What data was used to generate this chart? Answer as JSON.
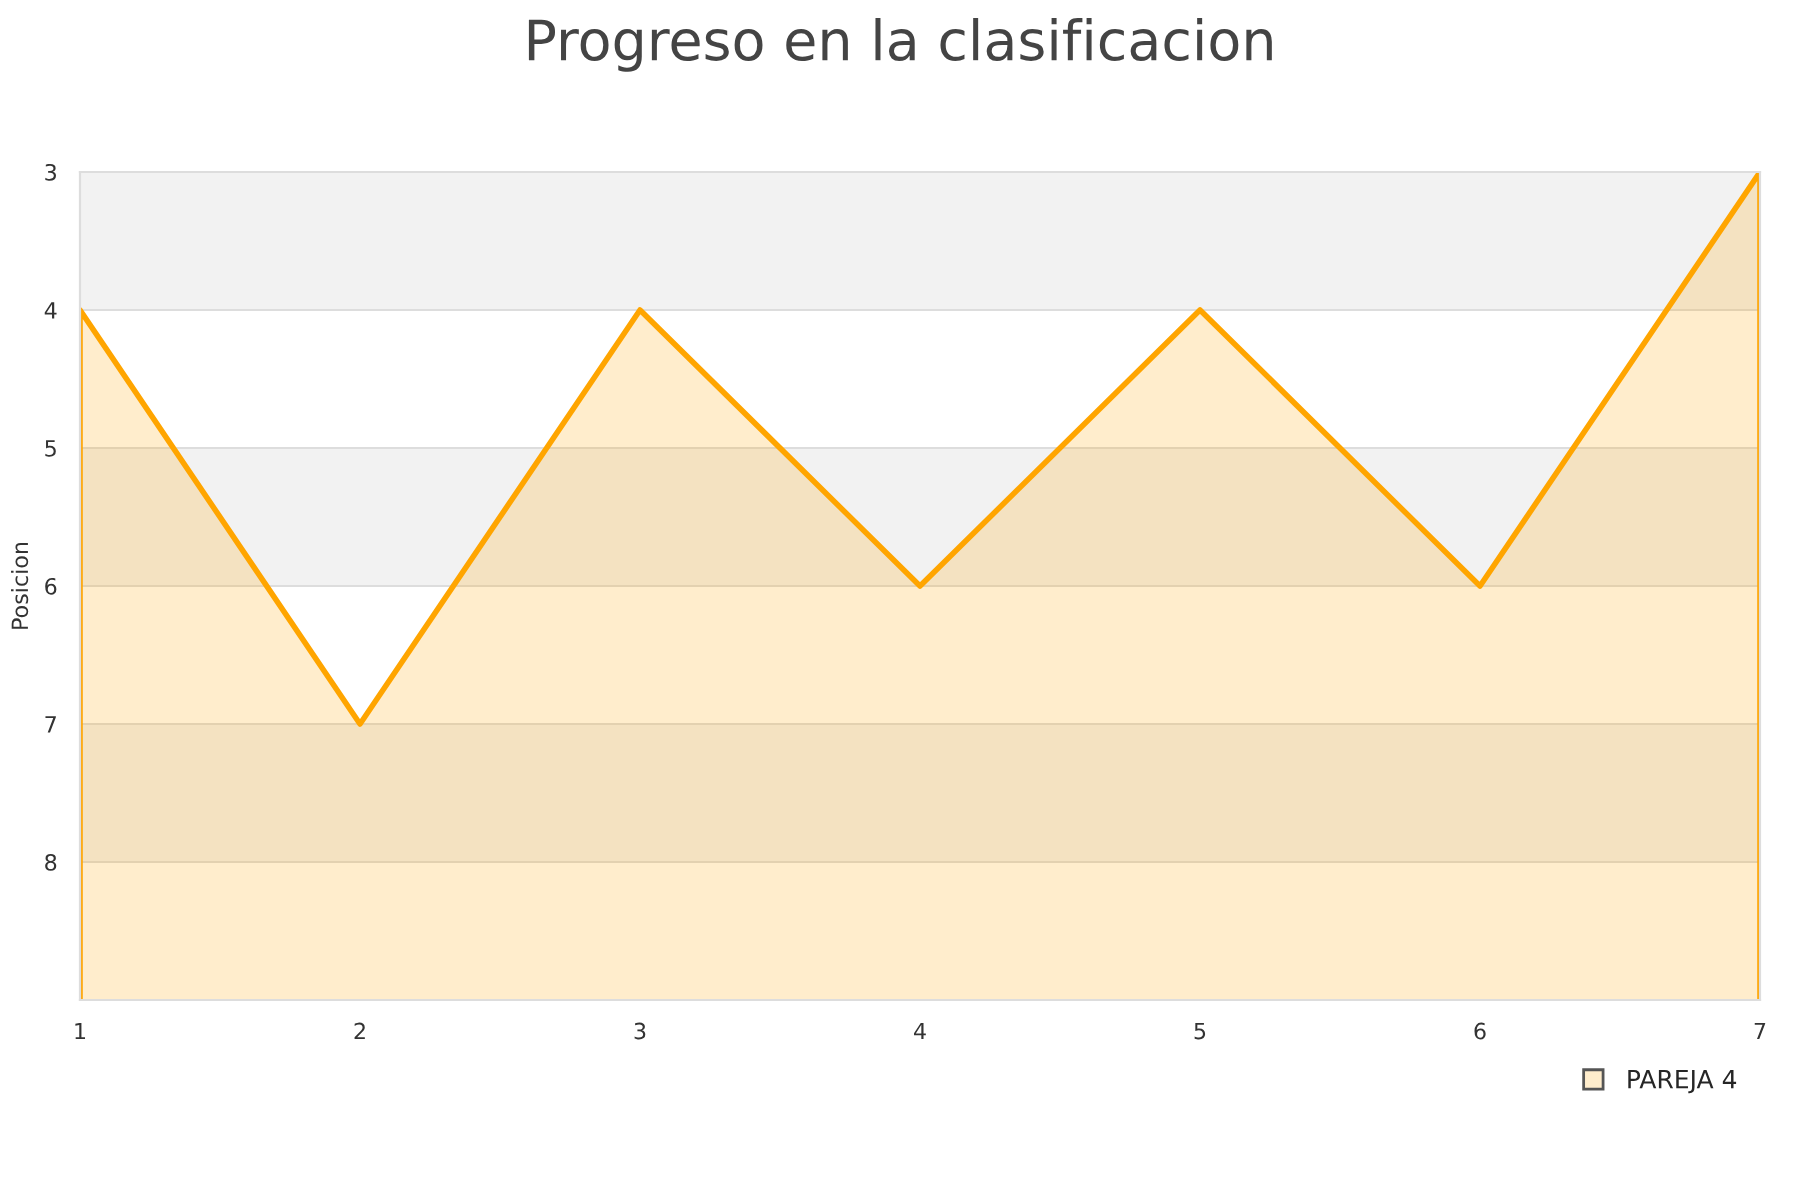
{
  "chart_data": {
    "type": "area",
    "title": "Progreso en la clasificacion",
    "ylabel": "Posicion",
    "x": [
      1,
      2,
      3,
      4,
      5,
      6,
      7
    ],
    "series": [
      {
        "name": "PAREJA 4",
        "color": "#ffa500",
        "values": [
          4,
          7,
          4,
          6,
          4,
          6,
          3
        ]
      }
    ],
    "xlim": [
      1,
      7
    ],
    "xticks": [
      1,
      2,
      3,
      4,
      5,
      6,
      7
    ],
    "ylim": [
      9,
      3
    ],
    "yticks": [
      3,
      4,
      5,
      6,
      7,
      8
    ],
    "bands": [
      {
        "axis": "y",
        "from": 3,
        "to": 4,
        "color": "#f2f2f2"
      },
      {
        "axis": "y",
        "from": 5,
        "to": 6,
        "color": "#f2f2f2"
      },
      {
        "axis": "y",
        "from": 7,
        "to": 8,
        "color": "#f2f2f2"
      }
    ],
    "grid": "y",
    "legend": "bottom right"
  }
}
